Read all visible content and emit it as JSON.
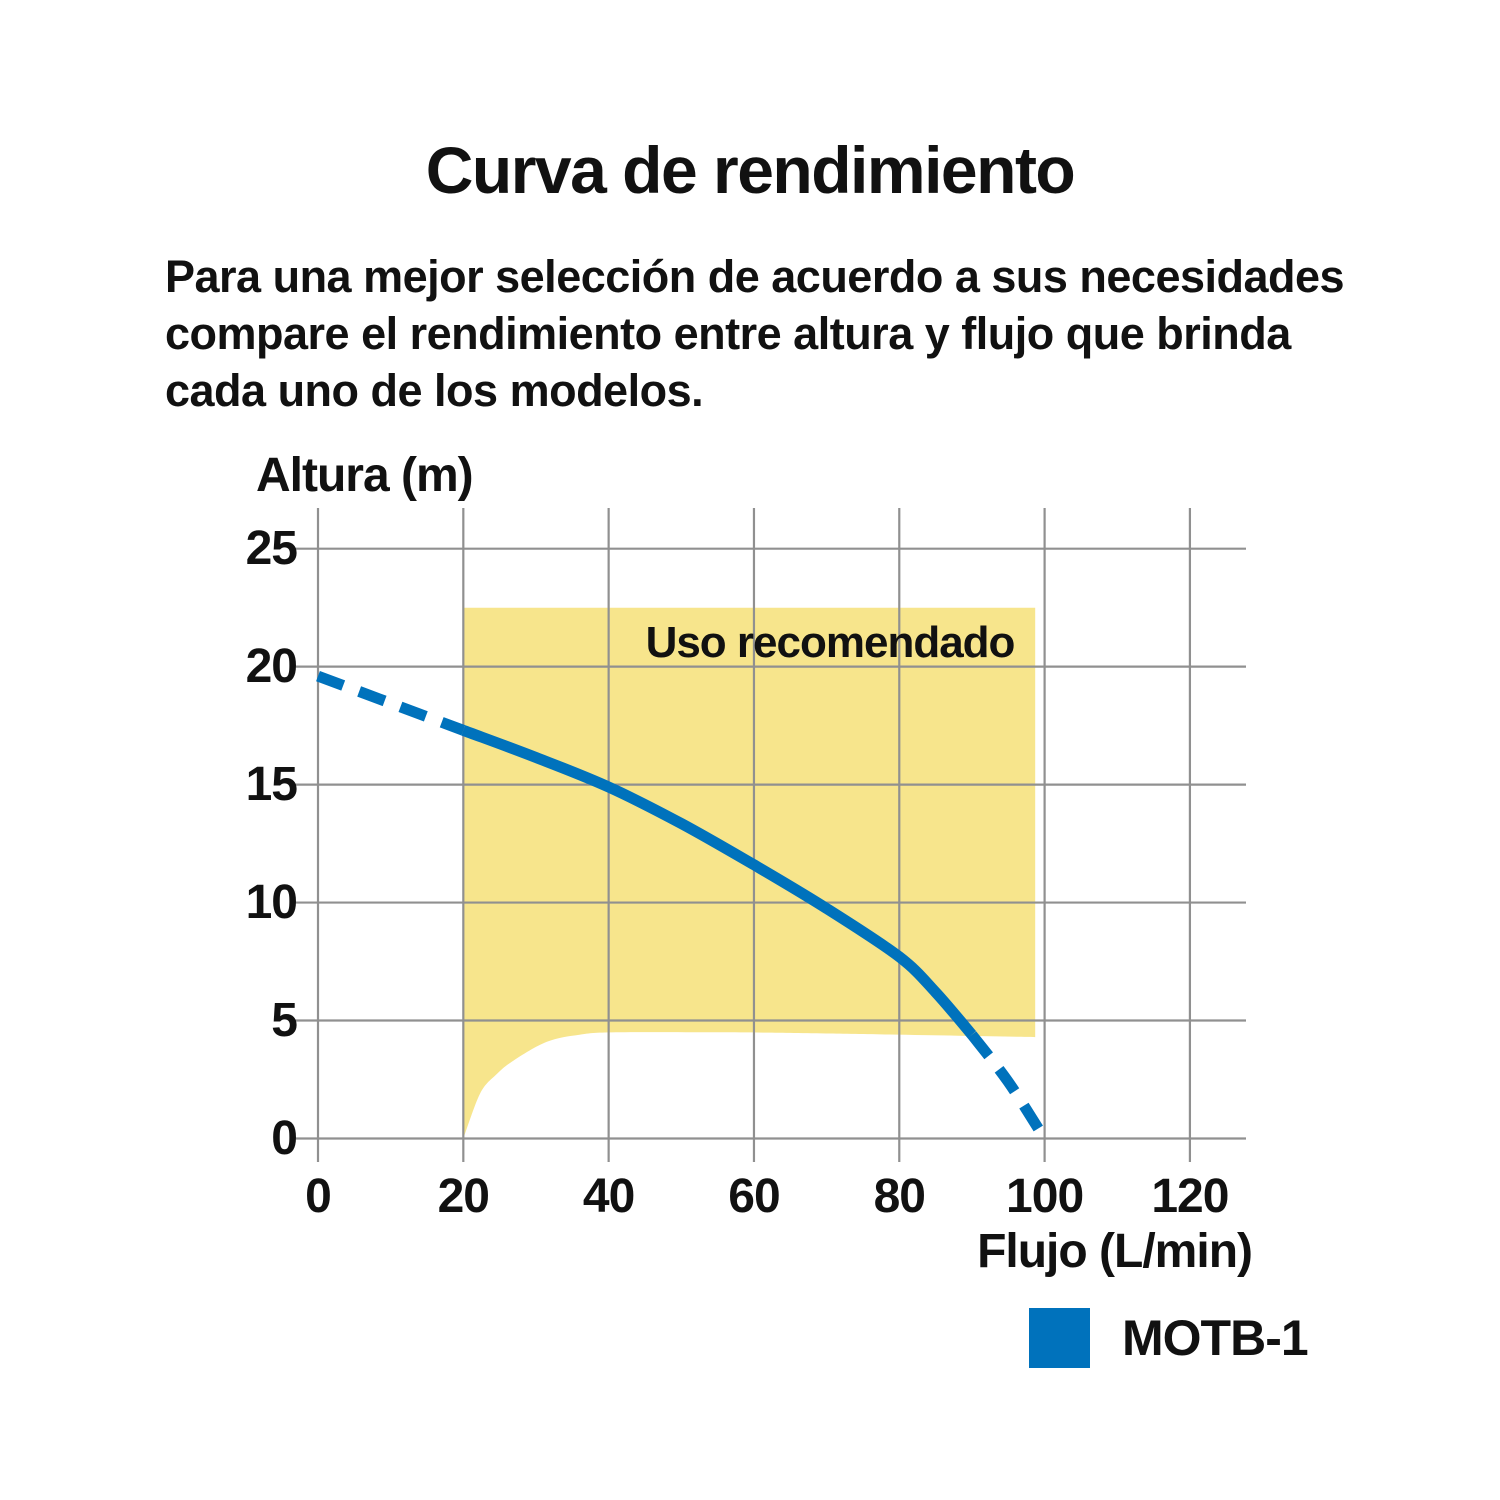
{
  "title": "Curva de rendimiento",
  "intro": {
    "text": "Para una mejor selección de acuerdo a sus necesidades\ncompare el rendimiento entre altura y flujo que brinda\ncada uno de los modelos."
  },
  "legend": {
    "label": "MOTB-1",
    "swatch_color": "#0072BC"
  },
  "chart_data": {
    "type": "line",
    "title": "Curva de rendimiento",
    "xlabel": "Flujo (L/min)",
    "ylabel": "Altura (m)",
    "xlim": [
      0,
      128
    ],
    "ylim": [
      0,
      26.7
    ],
    "xticks": [
      0,
      20,
      40,
      60,
      80,
      100,
      120
    ],
    "yticks": [
      0,
      5,
      10,
      15,
      20,
      25
    ],
    "grid": true,
    "grid_color": "#909090",
    "legend_position": "bottom-right",
    "series": [
      {
        "name": "MOTB-1",
        "color": "#0072BC",
        "points": [
          [
            0,
            19.6
          ],
          [
            10,
            18.45
          ],
          [
            20,
            17.3
          ],
          [
            30,
            16.15
          ],
          [
            40,
            14.9
          ],
          [
            50,
            13.35
          ],
          [
            60,
            11.6
          ],
          [
            70,
            9.75
          ],
          [
            80,
            7.7
          ],
          [
            85,
            6.2
          ],
          [
            90,
            4.4
          ],
          [
            95,
            2.4
          ],
          [
            100,
            0
          ]
        ],
        "solid_range": [
          20,
          90
        ],
        "dashed_ranges": [
          [
            0,
            20
          ],
          [
            90,
            100
          ]
        ]
      }
    ],
    "recommended_region": {
      "label": "Uso recomendado",
      "fill_color": "#F7E58C",
      "x_min": 20,
      "x_max": 98.7,
      "y_top": 22.5,
      "bottom_points": [
        [
          20,
          0
        ],
        [
          22.3,
          1.9
        ],
        [
          24.5,
          2.7
        ],
        [
          26.9,
          3.3
        ],
        [
          31.5,
          4.1
        ],
        [
          36,
          4.4
        ],
        [
          41,
          4.5
        ],
        [
          55,
          4.5
        ],
        [
          70,
          4.45
        ],
        [
          98.7,
          4.3
        ]
      ]
    }
  }
}
